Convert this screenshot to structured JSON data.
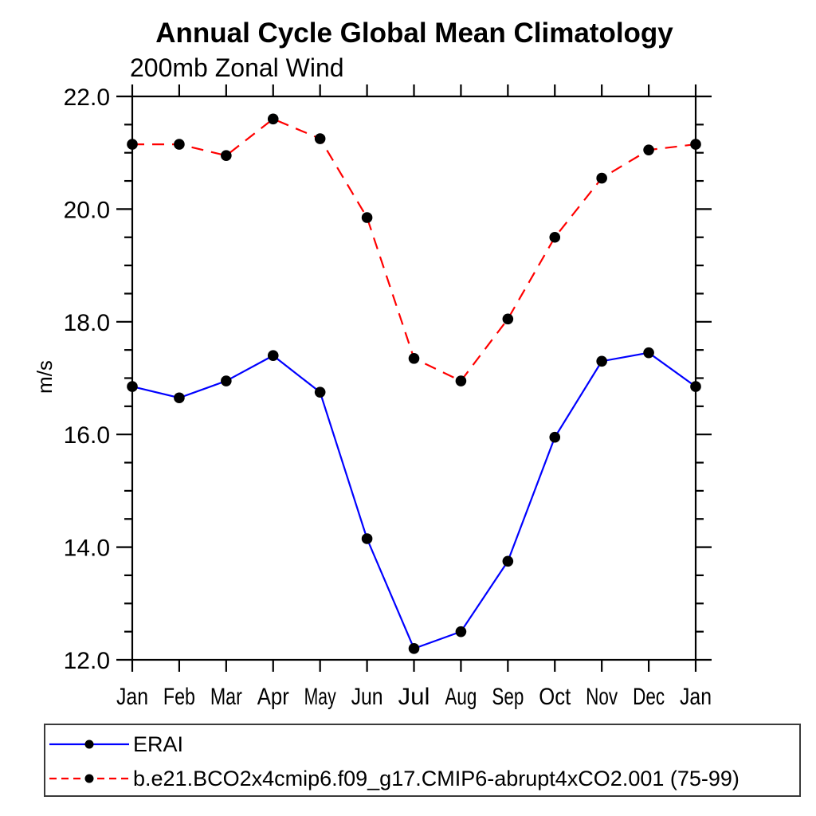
{
  "figure": {
    "title": "Annual Cycle Global Mean Climatology",
    "subtitle": "200mb Zonal Wind",
    "ylabel": "m/s"
  },
  "legend": {
    "position": "bottom-left-box",
    "entries": [
      {
        "label": "ERAI",
        "color": "#0000ff",
        "line_style": "solid",
        "marker": "filled-circle",
        "marker_color": "#000000"
      },
      {
        "label": "b.e21.BCO2x4cmip6.f09_g17.CMIP6-abrupt4xCO2.001 (75-99)",
        "color": "#ff0000",
        "line_style": "dashed",
        "marker": "filled-circle",
        "marker_color": "#000000"
      }
    ]
  },
  "chart_data": {
    "type": "line",
    "title": "Annual Cycle Global Mean Climatology",
    "subtitle": "200mb Zonal Wind",
    "xlabel": "",
    "ylabel": "m/s",
    "categories": [
      "Jan",
      "Feb",
      "Mar",
      "Apr",
      "May",
      "Jun",
      "Jul",
      "Aug",
      "Sep",
      "Oct",
      "Nov",
      "Dec",
      "Jan"
    ],
    "series": [
      {
        "name": "ERAI",
        "color": "#0000ff",
        "line_style": "solid",
        "marker": "filled-circle",
        "marker_color": "#000000",
        "values": [
          16.85,
          16.65,
          16.95,
          17.4,
          16.75,
          14.15,
          12.2,
          12.5,
          13.75,
          15.95,
          17.3,
          17.45,
          16.85
        ]
      },
      {
        "name": "b.e21.BCO2x4cmip6.f09_g17.CMIP6-abrupt4xCO2.001 (75-99)",
        "color": "#ff0000",
        "line_style": "dashed",
        "marker": "filled-circle",
        "marker_color": "#000000",
        "values": [
          21.15,
          21.15,
          20.95,
          21.6,
          21.25,
          19.85,
          17.35,
          16.95,
          18.05,
          19.5,
          20.55,
          21.05,
          21.15
        ]
      }
    ],
    "ylim": [
      12.0,
      22.0
    ],
    "ytick_major_step": 2.0,
    "ytick_minor_step": 0.5,
    "ytick_labels": [
      "12.0",
      "14.0",
      "16.0",
      "18.0",
      "20.0",
      "22.0"
    ],
    "grid": false,
    "axis_color": "#000000",
    "legend_position": "bottom-left-box"
  }
}
